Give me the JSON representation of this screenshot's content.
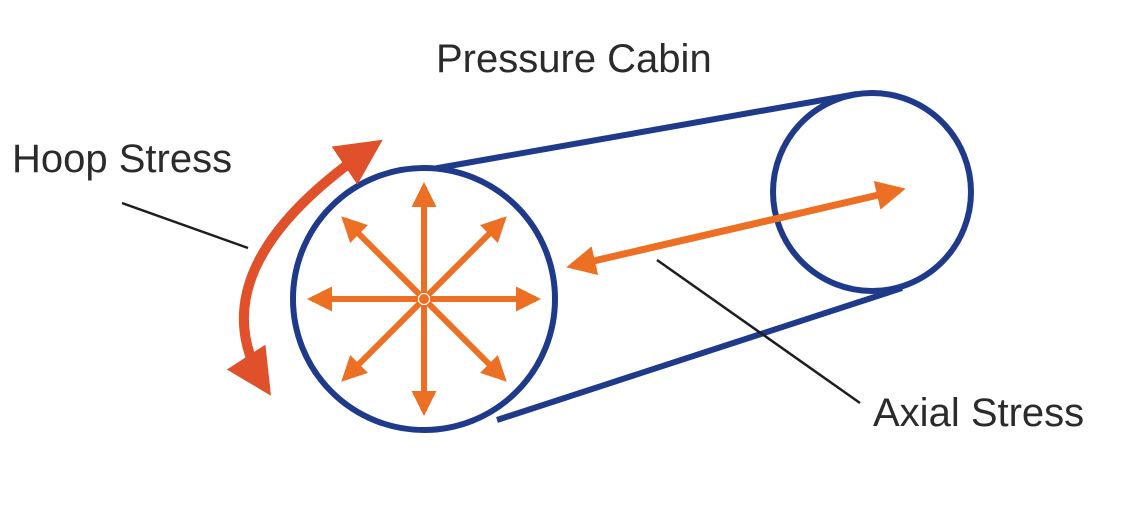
{
  "labels": {
    "title": "Pressure Cabin",
    "hoop": "Hoop Stress",
    "axial": "Axial Stress"
  },
  "colors": {
    "cylinder": "#1f3a8a",
    "stress_arrow": "#ec6f24",
    "hoop_arrow": "#e0502a",
    "text": "#2b2b2b"
  },
  "radial_arrow_count": 8
}
